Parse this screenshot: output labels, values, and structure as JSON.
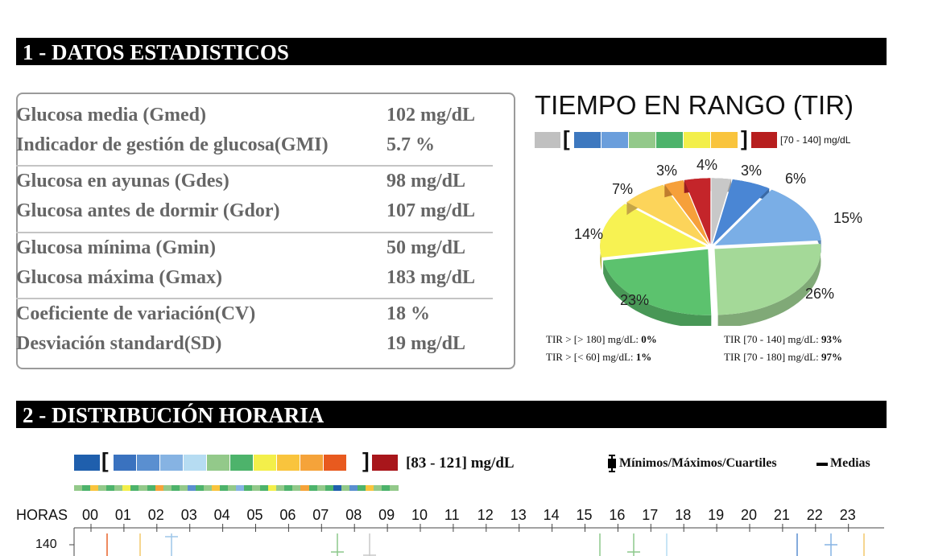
{
  "section1": {
    "title": "1 - DATOS ESTADISTICOS"
  },
  "stats": [
    {
      "label": "Glucosa media (Gmed)",
      "value": "102 mg/dL"
    },
    {
      "label": "Indicador de gestión de glucosa(GMI)",
      "value": "5.7 %"
    },
    {
      "label": "Glucosa en ayunas (Gdes)",
      "value": "98 mg/dL"
    },
    {
      "label": "Glucosa antes de dormir (Gdor)",
      "value": "107 mg/dL"
    },
    {
      "label": "Glucosa mínima (Gmin)",
      "value": "50 mg/dL"
    },
    {
      "label": "Glucosa máxima (Gmax)",
      "value": "183 mg/dL"
    },
    {
      "label": "Coeficiente de variación(CV)",
      "value": "18 %"
    },
    {
      "label": "Desviación standard(SD)",
      "value": "19 mg/dL"
    }
  ],
  "tir": {
    "title": "TIEMPO EN RANGO (TIR)",
    "range_label": "[70 - 140] mg/dL",
    "stat_above": {
      "label": "TIR > [> 180] mg/dL: ",
      "value": "0%"
    },
    "stat_below": {
      "label": "TIR > [<   60] mg/dL: ",
      "value": "1%"
    },
    "stat_70_140": {
      "label": "TIR [70 - 140] mg/dL: ",
      "value": "93%"
    },
    "stat_70_180": {
      "label": "TIR [70 - 180] mg/dL: ",
      "value": "97%"
    },
    "legend_colors": [
      "#c0c0c0",
      "#3d78bf",
      "#6a9edc",
      "#93c98a",
      "#4db36b",
      "#f3ef4a",
      "#f9c43d",
      "#b71e1e"
    ]
  },
  "chart_data": {
    "type": "pie",
    "slices": [
      {
        "label": "3%",
        "value": 3,
        "color": "#c8c8c8"
      },
      {
        "label": "6%",
        "value": 6,
        "color": "#4a86d4"
      },
      {
        "label": "15%",
        "value": 15,
        "color": "#7aaee6"
      },
      {
        "label": "26%",
        "value": 26,
        "color": "#a4d998"
      },
      {
        "label": "23%",
        "value": 23,
        "color": "#5cc26e"
      },
      {
        "label": "14%",
        "value": 14,
        "color": "#f7f252"
      },
      {
        "label": "7%",
        "value": 7,
        "color": "#fcd45a"
      },
      {
        "label": "3%",
        "value": 3,
        "color": "#f6a03a"
      },
      {
        "label": "4%",
        "value": 4,
        "color": "#c4252a"
      }
    ]
  },
  "section2": {
    "title": "2 - DISTRIBUCIÓN HORARIA",
    "range_label": "[83 - 121] mg/dL",
    "legend_minmax": "Mínimos/Máximos/Cuartiles",
    "legend_means": "Medias",
    "legend_colors": [
      "#1f5fad",
      "#3a72bf",
      "#5a8fd0",
      "#86b3e3",
      "#b6dcf2",
      "#93c98a",
      "#4db36b",
      "#f3ef4a",
      "#f9c43d",
      "#f5a33a",
      "#e85a1f",
      "#a8161b"
    ],
    "hours_title": "HORAS",
    "hours": [
      "00",
      "01",
      "02",
      "03",
      "04",
      "05",
      "06",
      "07",
      "08",
      "09",
      "10",
      "11",
      "12",
      "13",
      "14",
      "15",
      "16",
      "17",
      "18",
      "19",
      "20",
      "21",
      "22",
      "23"
    ],
    "y_tick": "140"
  }
}
